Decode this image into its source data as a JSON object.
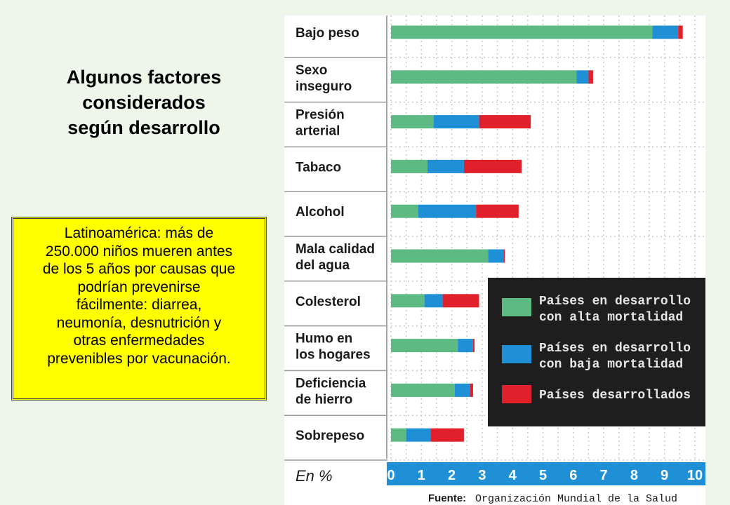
{
  "slide": {
    "title_lines": [
      "Algunos factores",
      "considerados",
      "según desarrollo"
    ],
    "note_lines": [
      "Latinoamérica: más de",
      "250.000 niños mueren antes",
      "de los 5 años por causas que",
      "podrían prevenirse",
      "fácilmente: diarrea,",
      "neumonía, desnutrición y",
      "otras enfermedades",
      "prevenibles por vacunación."
    ]
  },
  "chart_data": {
    "type": "bar",
    "orientation": "horizontal",
    "stacked": true,
    "categories": [
      [
        "Bajo peso"
      ],
      [
        "Sexo",
        "inseguro"
      ],
      [
        "Presión",
        "arterial"
      ],
      [
        "Tabaco"
      ],
      [
        "Alcohol"
      ],
      [
        "Mala calidad",
        "del agua"
      ],
      [
        "Colesterol"
      ],
      [
        "Humo en",
        "los hogares"
      ],
      [
        "Deficiencia",
        "de hierro"
      ],
      [
        "Sobrepeso"
      ]
    ],
    "series": [
      {
        "name": "Países en desarrollo con alta mortalidad",
        "color": "#5dba82",
        "values": [
          8.6,
          6.1,
          1.4,
          1.2,
          0.9,
          3.2,
          1.1,
          2.2,
          2.1,
          0.5
        ]
      },
      {
        "name": "Países en desarrollo con baja mortalidad",
        "color": "#1f8fd6",
        "values": [
          0.85,
          0.4,
          1.5,
          1.2,
          1.9,
          0.5,
          0.6,
          0.5,
          0.5,
          0.8
        ]
      },
      {
        "name": "Países desarrollados",
        "color": "#e0202a",
        "values": [
          0.15,
          0.15,
          1.7,
          1.9,
          1.4,
          0.05,
          1.2,
          0.05,
          0.1,
          1.1
        ]
      }
    ],
    "xlim": [
      0,
      10
    ],
    "xticks": [
      "0",
      "1",
      "2",
      "3",
      "4",
      "5",
      "6",
      "7",
      "8",
      "9",
      "10"
    ],
    "xlabel": "En %",
    "grid": true,
    "legend": {
      "placement": "right",
      "background": "#1e1e1e",
      "entries": [
        [
          "Países en desarrollo",
          "con alta mortalidad"
        ],
        [
          "Países en desarrollo",
          "con baja mortalidad"
        ],
        [
          "Países desarrollados"
        ]
      ]
    },
    "source": {
      "label": "Fuente:",
      "text": "Organización Mundial de la Salud"
    },
    "axis_band_color": "#1f8fd6"
  }
}
